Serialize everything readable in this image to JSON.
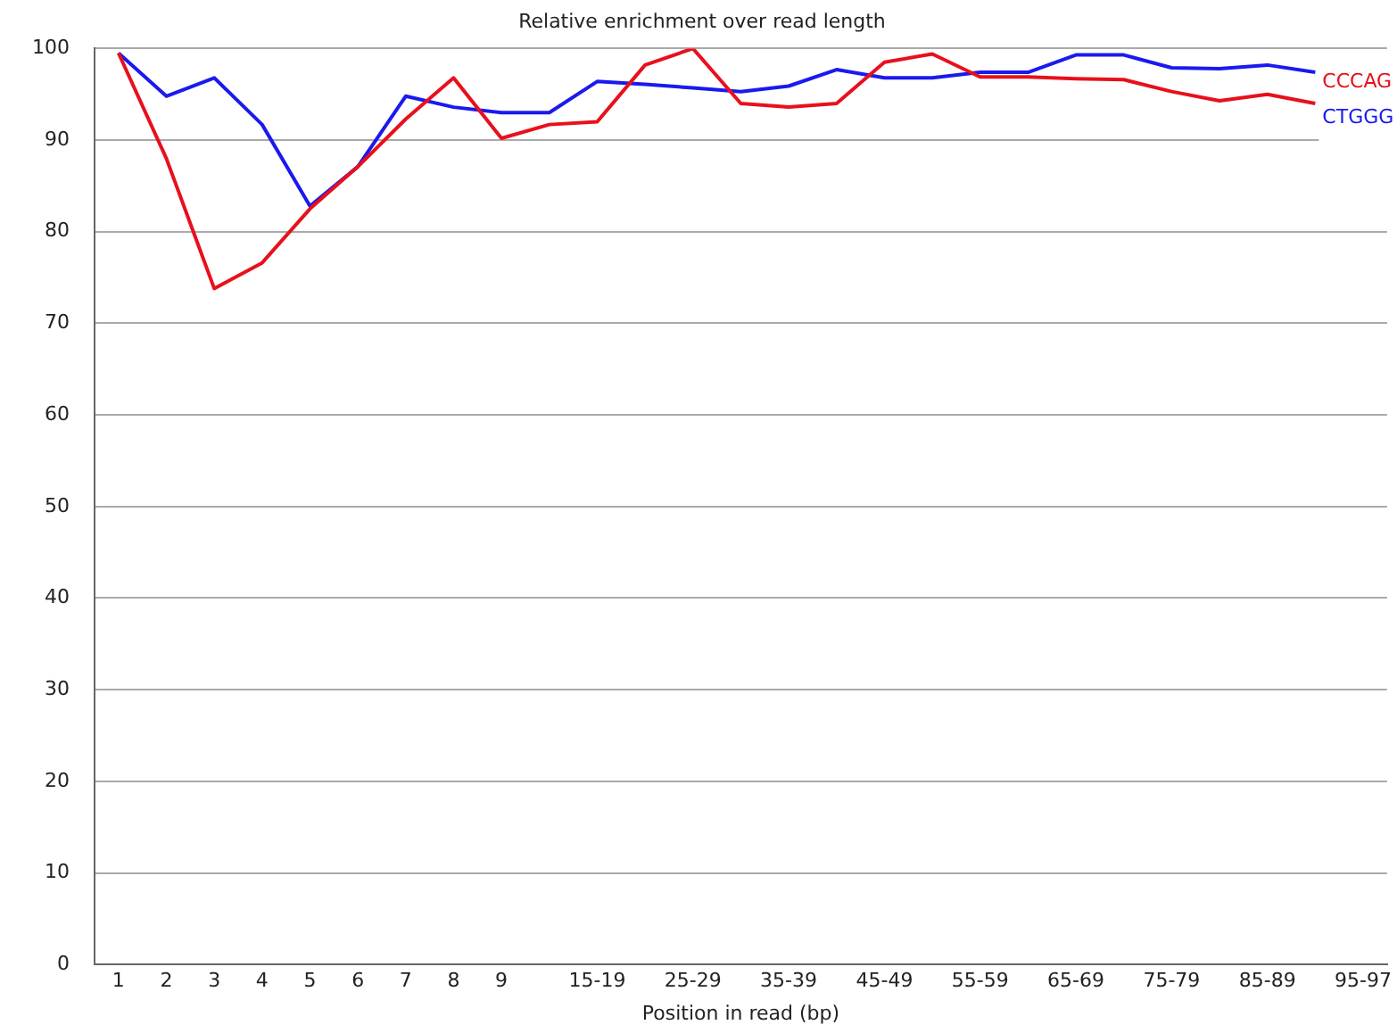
{
  "chart_data": {
    "type": "line",
    "title": "Relative enrichment over read length",
    "xlabel": "Position in read (bp)",
    "categories": [
      "1",
      "2",
      "3",
      "4",
      "5",
      "6",
      "7",
      "8",
      "9",
      null,
      "15-19",
      null,
      "25-29",
      null,
      "35-39",
      null,
      "45-49",
      null,
      "55-59",
      null,
      "65-69",
      null,
      "75-79",
      null,
      "85-89",
      null,
      "95-97"
    ],
    "series": [
      {
        "name": "CCCAG",
        "color": "#e8101c",
        "values": [
          99.5,
          88.0,
          73.8,
          76.6,
          82.5,
          87.1,
          92.3,
          96.8,
          90.2,
          91.7,
          92.0,
          98.2,
          100,
          94.0,
          93.6,
          94.0,
          98.5,
          99.4,
          96.9,
          96.9,
          96.7,
          96.6,
          95.3,
          94.3,
          95.0,
          94.0,
          null
        ]
      },
      {
        "name": "CTGGG",
        "color": "#1a1aee",
        "values": [
          99.5,
          94.8,
          96.8,
          91.7,
          82.8,
          87.1,
          94.8,
          93.6,
          93.0,
          93.0,
          96.4,
          96.1,
          95.7,
          95.3,
          95.9,
          97.7,
          96.8,
          96.8,
          97.4,
          97.4,
          99.3,
          99.3,
          97.9,
          97.8,
          98.2,
          97.4,
          null
        ]
      }
    ],
    "ylim": [
      0,
      100
    ],
    "yticks": [
      0,
      10,
      20,
      30,
      40,
      50,
      60,
      70,
      80,
      90,
      100
    ],
    "grid": "y",
    "legend": "top right",
    "marker": "none",
    "line_style": "solid"
  }
}
